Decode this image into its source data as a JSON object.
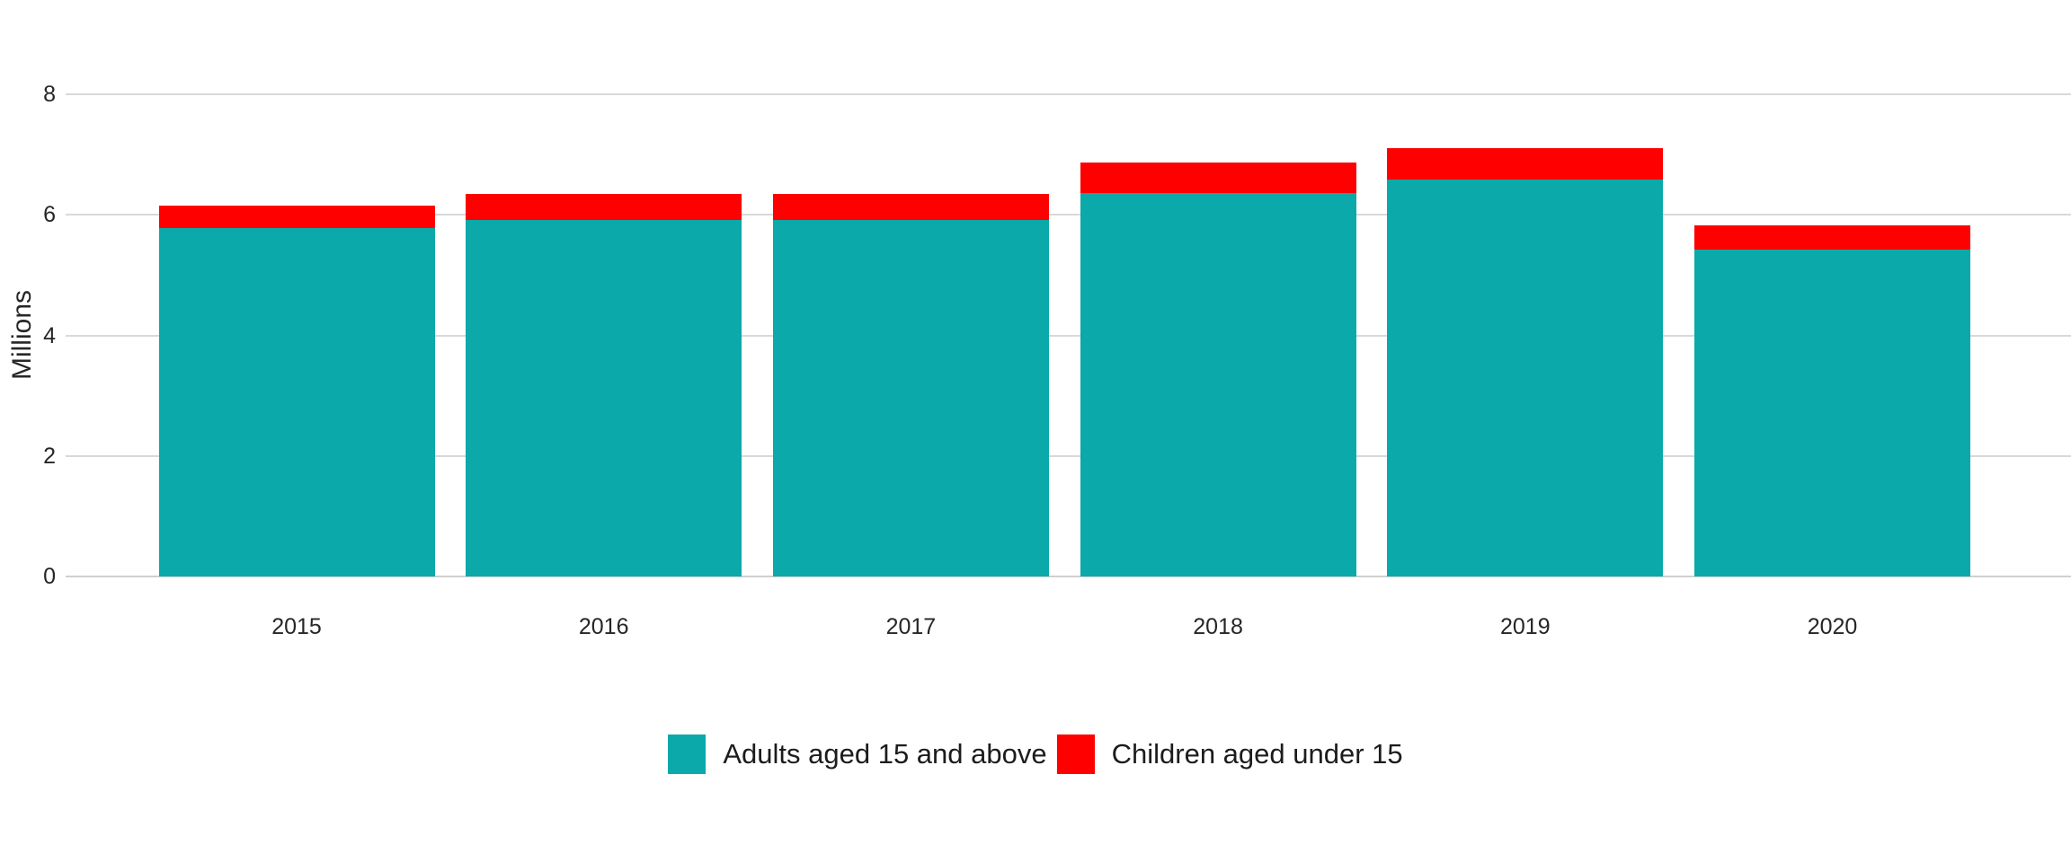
{
  "chart_data": {
    "type": "bar",
    "stacked": true,
    "title": "",
    "xlabel": "",
    "ylabel": "Millions",
    "categories": [
      "2015",
      "2016",
      "2017",
      "2018",
      "2019",
      "2020"
    ],
    "series": [
      {
        "name": "Adults aged 15 and above",
        "color": "#0BA9AA",
        "values": [
          5.78,
          5.91,
          5.91,
          6.36,
          6.58,
          5.43
        ]
      },
      {
        "name": "Children aged under 15",
        "color": "#FF0000",
        "values": [
          0.38,
          0.44,
          0.44,
          0.51,
          0.53,
          0.4
        ]
      }
    ],
    "totals": [
      6.16,
      6.35,
      6.35,
      6.87,
      7.11,
      5.83
    ],
    "ylim": [
      0,
      8
    ],
    "yticks": [
      0,
      2,
      4,
      6,
      8
    ],
    "grid": true,
    "legend_position": "bottom"
  },
  "colors": {
    "background": "#FFFFFF",
    "grid": "#D9D9D9",
    "axis_text": "#262626",
    "adults": "#0BA9AA",
    "children": "#FF0000"
  }
}
